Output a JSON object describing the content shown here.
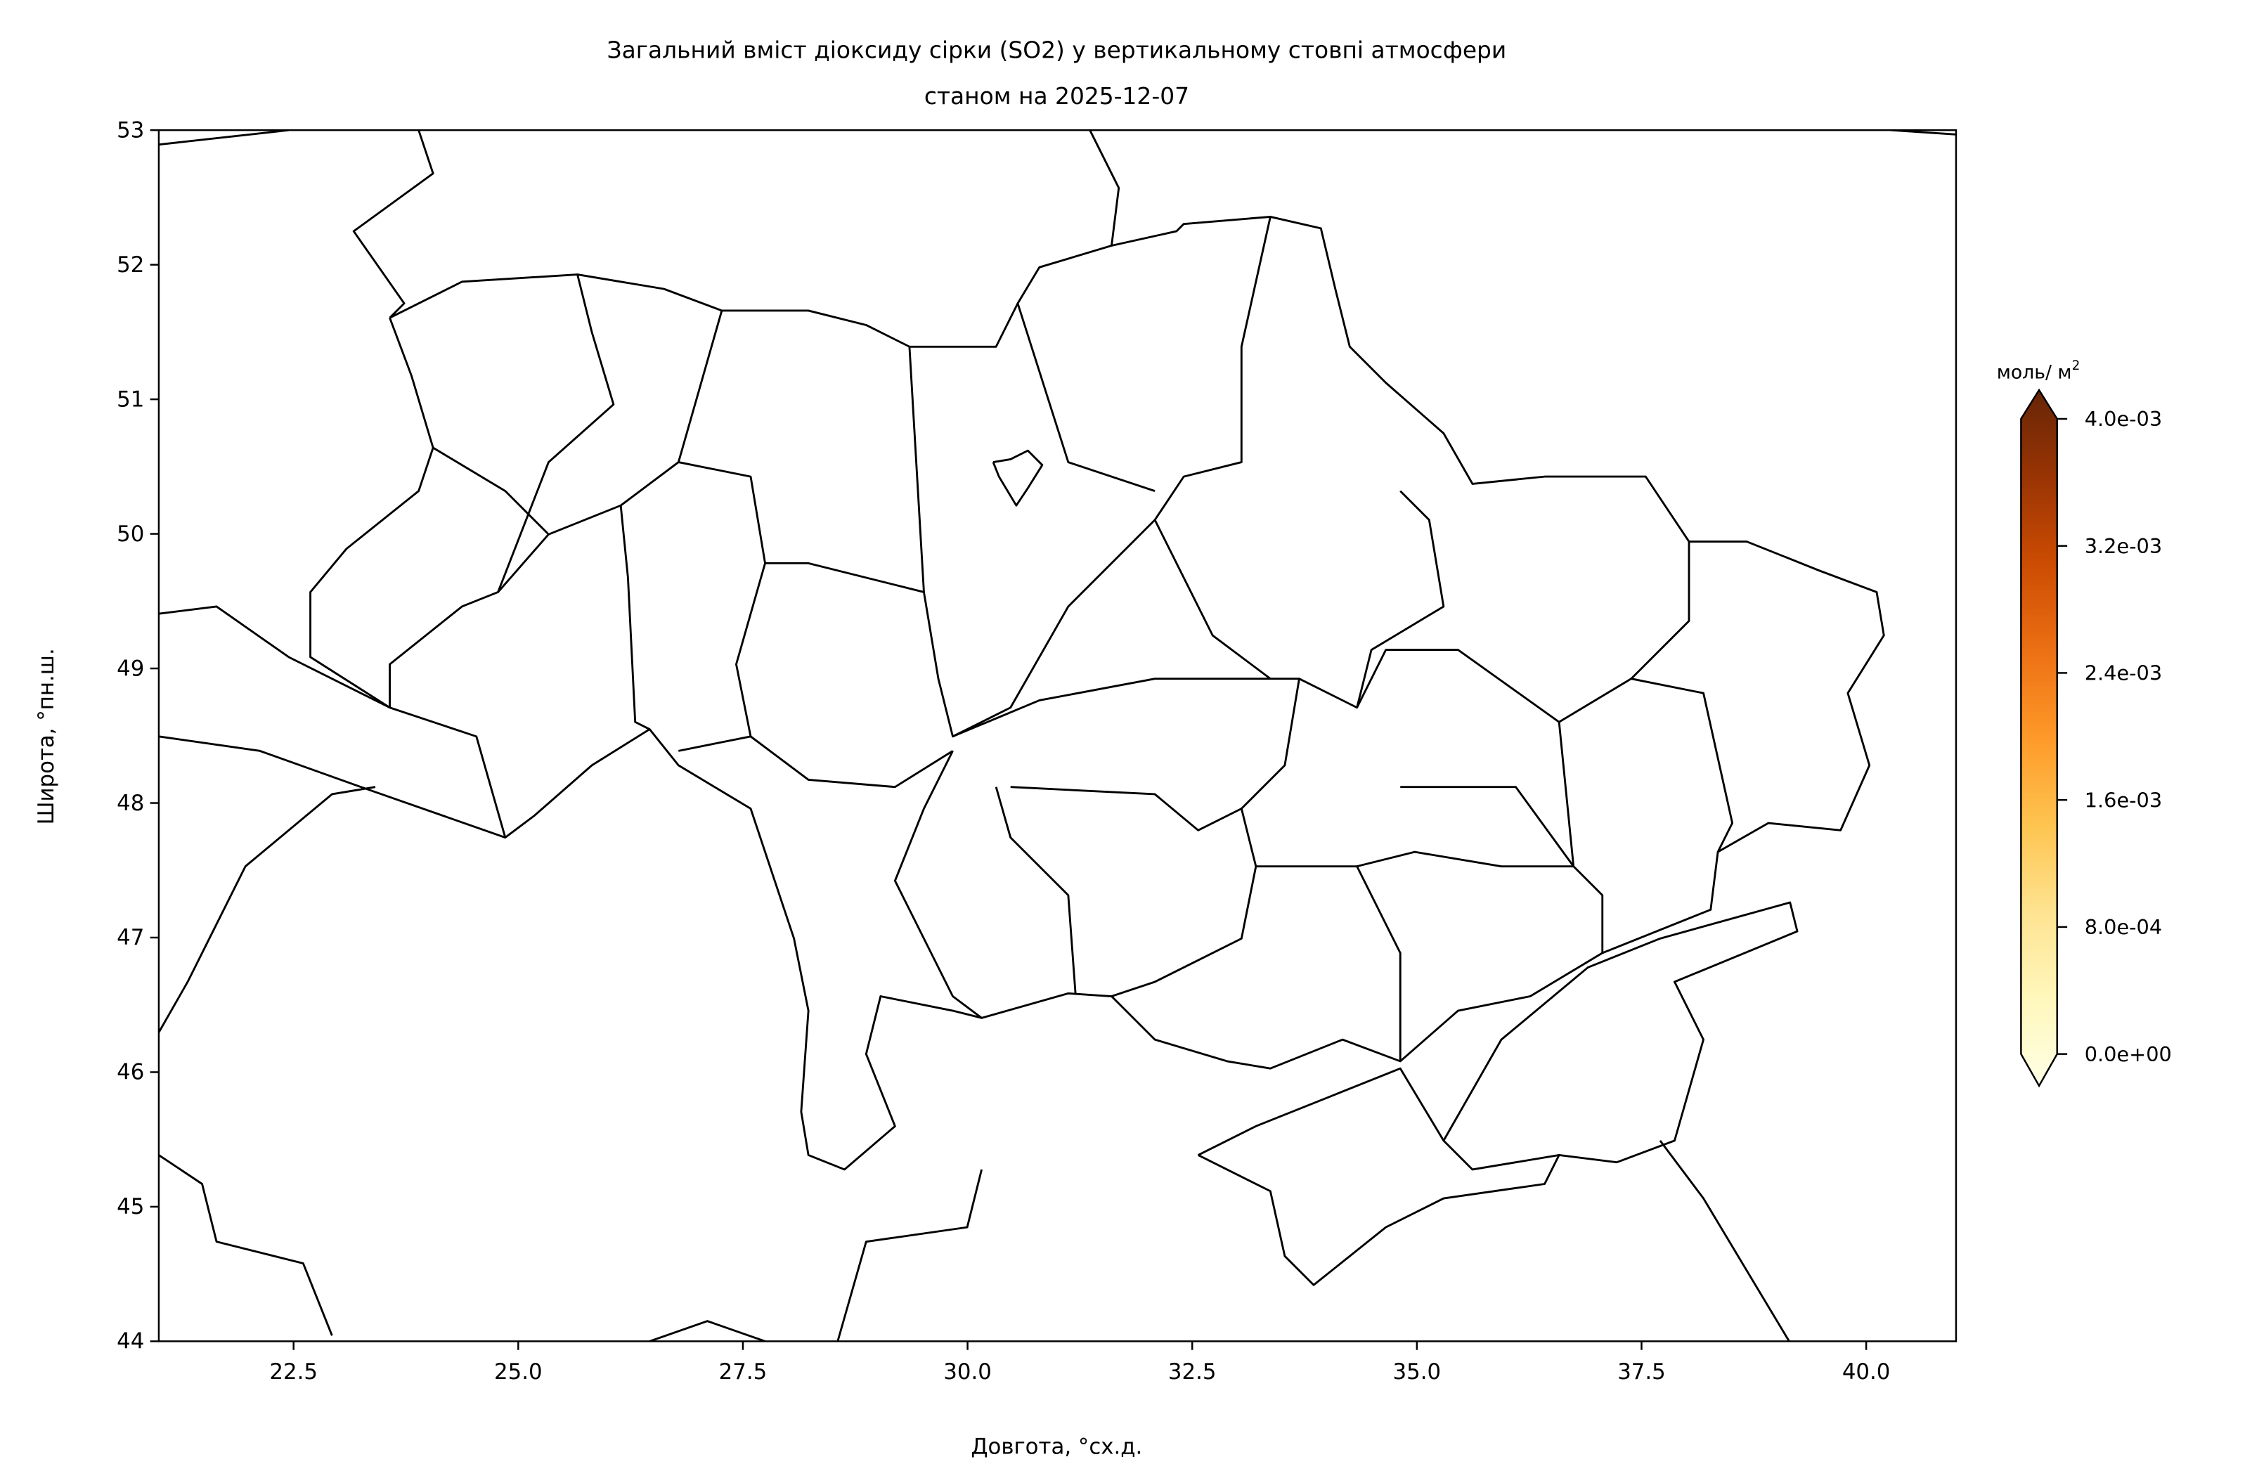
{
  "chart_data": {
    "type": "heatmap",
    "title": "Загальний вміст діоксиду сірки (SO2) у вертикальному стовпі атмосфери",
    "subtitle": "станом на 2025-12-07",
    "xlabel": "Довгота, °сх.д.",
    "ylabel": "Широта, °пн.ш.",
    "xlim": [
      21,
      41
    ],
    "ylim": [
      44,
      53
    ],
    "xticks": [
      22.5,
      25.0,
      27.5,
      30.0,
      32.5,
      35.0,
      37.5,
      40.0
    ],
    "xtick_labels": [
      "22.5",
      "25.0",
      "27.5",
      "30.0",
      "32.5",
      "35.0",
      "37.5",
      "40.0"
    ],
    "yticks": [
      44,
      45,
      46,
      47,
      48,
      49,
      50,
      51,
      52,
      53
    ],
    "ytick_labels": [
      "44",
      "45",
      "46",
      "47",
      "48",
      "49",
      "50",
      "51",
      "52",
      "53"
    ],
    "grid": false,
    "colorbar": {
      "label": "моль/ м",
      "label_sup": "2",
      "colormap": "YlOrBr",
      "colors": [
        "#ffffe5",
        "#fff7bc",
        "#fee391",
        "#fec44f",
        "#fe9929",
        "#ec7014",
        "#cc4c02",
        "#993404",
        "#662506"
      ],
      "range": [
        0,
        0.004
      ],
      "extend": "both",
      "ticks": [
        0,
        0.0008,
        0.0016,
        0.0024,
        0.0032,
        0.004
      ],
      "tick_labels": [
        "0.0e+00",
        "8.0e-04",
        "1.6e-03",
        "2.4e-03",
        "3.2e-03",
        "4.0e-03"
      ]
    },
    "values": "no SO2 data shown (map empty, borders only)"
  }
}
